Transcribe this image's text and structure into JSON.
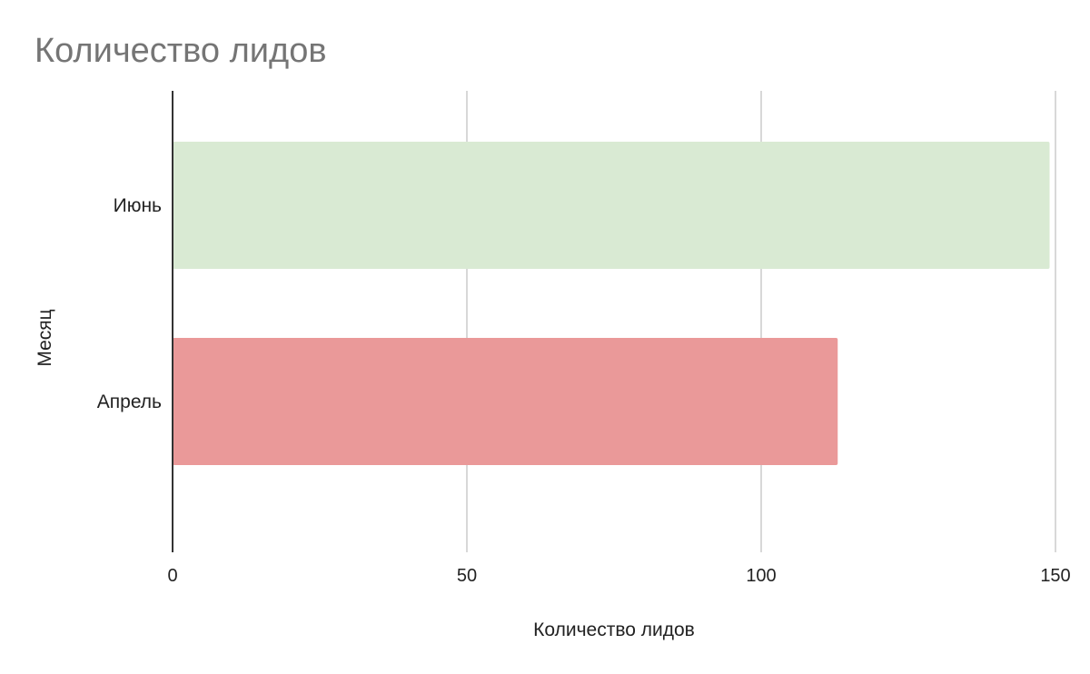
{
  "chart_data": {
    "type": "bar",
    "orientation": "horizontal",
    "title": "Количество лидов",
    "xlabel": "Количество лидов",
    "ylabel": "Месяц",
    "categories": [
      "Июнь",
      "Апрель"
    ],
    "values": [
      149,
      113
    ],
    "colors": [
      "#d9ead3",
      "#ea9999"
    ],
    "xlim": [
      0,
      150
    ],
    "xticks": [
      0,
      50,
      100,
      150
    ],
    "grid": true,
    "gridline_color": "#cccccc",
    "baseline_color": "#333333"
  }
}
